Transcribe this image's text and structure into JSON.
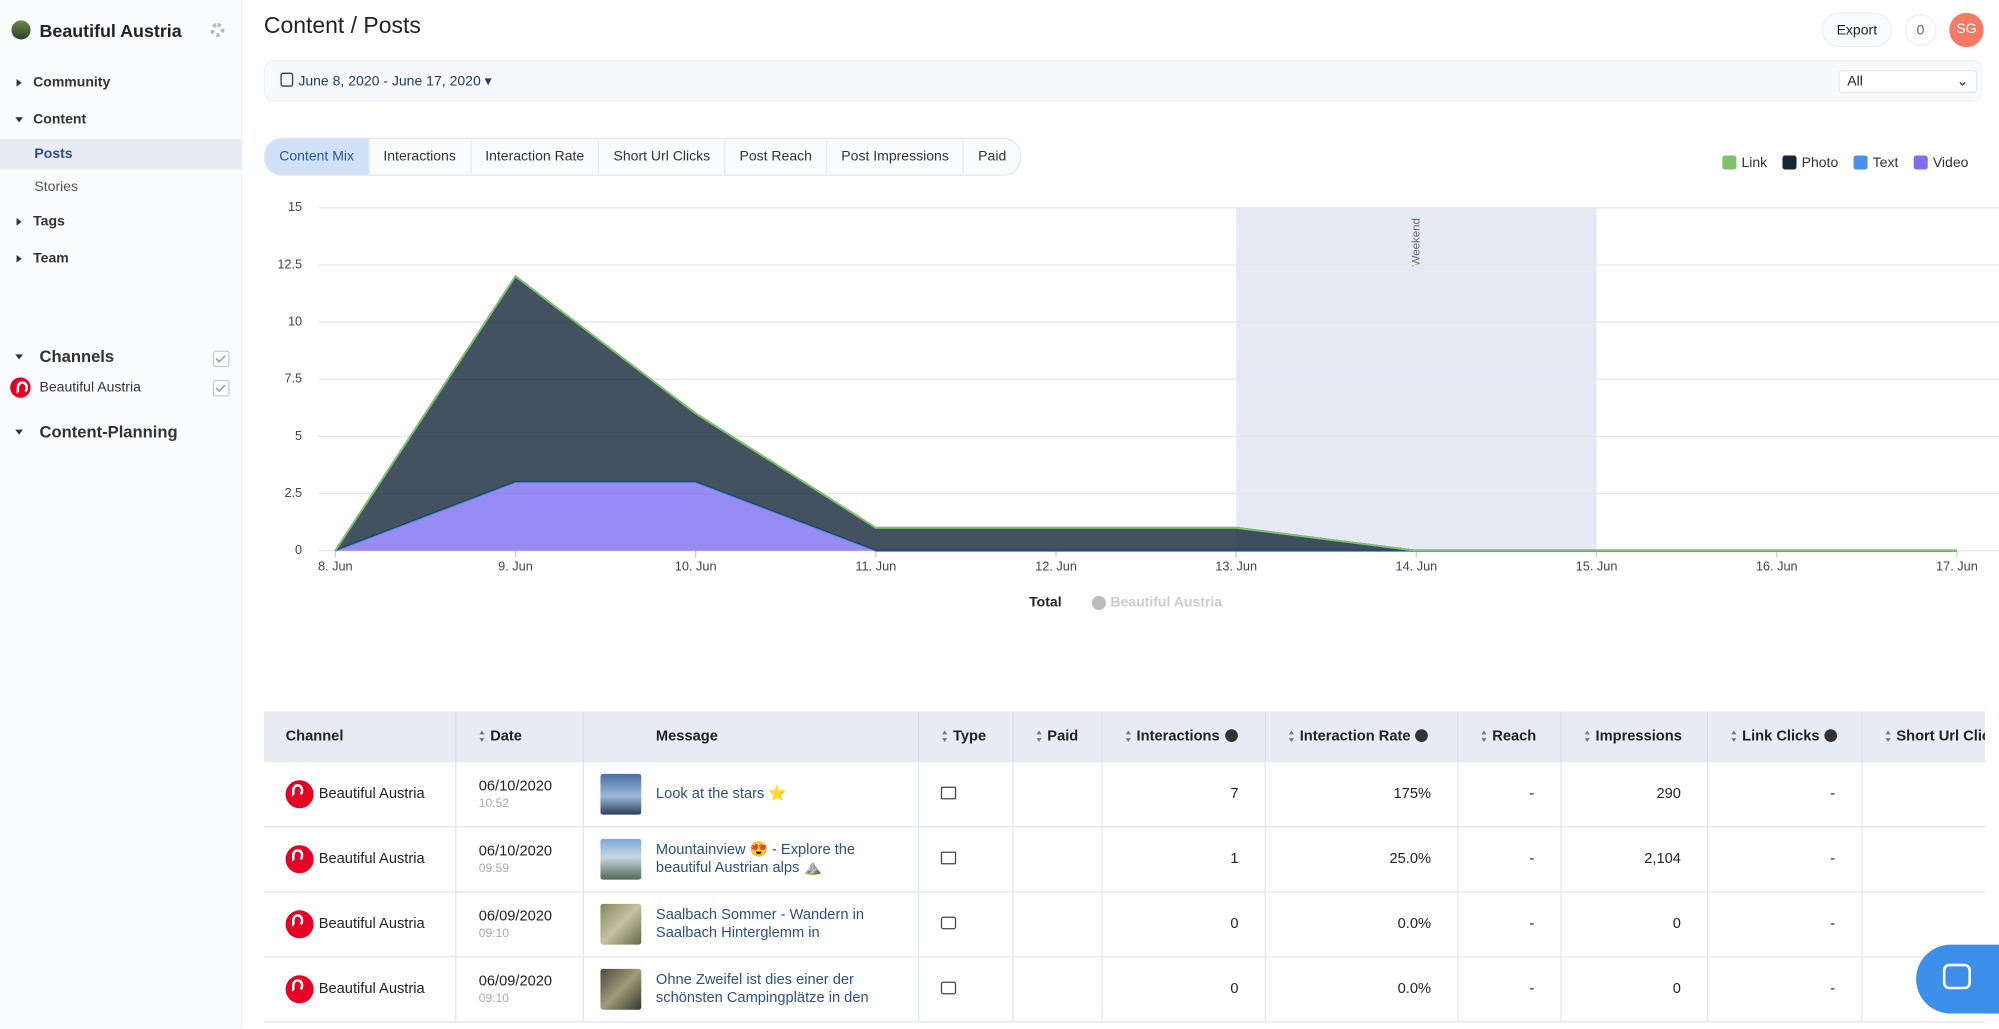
{
  "sidebar": {
    "title": "Beautiful Austria",
    "nav": [
      "Community",
      "Content",
      "Posts",
      "Stories",
      "Tags",
      "Team"
    ],
    "channels_title": "Channels",
    "channels": [
      "Beautiful Austria"
    ],
    "planning_title": "Content-Planning"
  },
  "header": {
    "title": "Content / Posts",
    "export": "Export",
    "count": "0",
    "avatar": "SG"
  },
  "filters": {
    "date_range": "June 8, 2020 - June 17, 2020",
    "select": "All"
  },
  "tabs": [
    "Content Mix",
    "Interactions",
    "Interaction Rate",
    "Short Url Clicks",
    "Post Reach",
    "Post Impressions",
    "Paid"
  ],
  "chart_data": {
    "type": "area",
    "stacked": true,
    "categories": [
      "8. Jun",
      "9. Jun",
      "10. Jun",
      "11. Jun",
      "12. Jun",
      "13. Jun",
      "14. Jun",
      "15. Jun",
      "16. Jun",
      "17. Jun"
    ],
    "series": [
      {
        "name": "Link",
        "color": "#7cc36b",
        "values": [
          0,
          0,
          0,
          0,
          0,
          0,
          0,
          0,
          0,
          0
        ]
      },
      {
        "name": "Photo",
        "color": "#14253a",
        "values": [
          0,
          9,
          3,
          1,
          1,
          1,
          0,
          0,
          0,
          0
        ]
      },
      {
        "name": "Text",
        "color": "#4a90e8",
        "values": [
          0,
          0,
          0,
          0,
          0,
          0,
          0,
          0,
          0,
          0
        ]
      },
      {
        "name": "Video",
        "color": "#7d6ff0",
        "values": [
          0,
          3,
          3,
          0,
          0,
          0,
          0,
          0,
          0,
          0
        ]
      }
    ],
    "ylim": [
      0,
      15
    ],
    "yticks": [
      0,
      2.5,
      5,
      7.5,
      10,
      12.5,
      15
    ],
    "grid": true,
    "legend": "top-right",
    "bands": [
      {
        "label": "Weekend",
        "x": [
          "13. Jun",
          "15. Jun"
        ]
      }
    ],
    "footer_legend": [
      "Total",
      "Beautiful Austria"
    ]
  },
  "table": {
    "columns": [
      "Channel",
      "Date",
      "Message",
      "Type",
      "Paid",
      "Interactions",
      "Interaction Rate",
      "Reach",
      "Impressions",
      "Link Clicks",
      "Short Url Clicks"
    ],
    "rows": [
      {
        "channel": "Beautiful Austria",
        "date": "06/10/2020",
        "time": "10:52",
        "message": "Look at the stars ⭐",
        "interactions": "7",
        "interaction_rate": "175%",
        "reach": "-",
        "impressions": "290",
        "link_clicks": "-"
      },
      {
        "channel": "Beautiful Austria",
        "date": "06/10/2020",
        "time": "09:59",
        "message": "Mountainview 😍 - Explore the beautiful Austrian alps ⛰️",
        "interactions": "1",
        "interaction_rate": "25.0%",
        "reach": "-",
        "impressions": "2,104",
        "link_clicks": "-"
      },
      {
        "channel": "Beautiful Austria",
        "date": "06/09/2020",
        "time": "09:10",
        "message": "Saalbach Sommer - Wandern in Saalbach Hinterglemm in",
        "interactions": "0",
        "interaction_rate": "0.0%",
        "reach": "-",
        "impressions": "0",
        "link_clicks": "-"
      },
      {
        "channel": "Beautiful Austria",
        "date": "06/09/2020",
        "time": "09:10",
        "message": "Ohne Zweifel ist dies einer der schönsten Campingplätze in den",
        "interactions": "0",
        "interaction_rate": "0.0%",
        "reach": "-",
        "impressions": "0",
        "link_clicks": "-"
      }
    ]
  }
}
